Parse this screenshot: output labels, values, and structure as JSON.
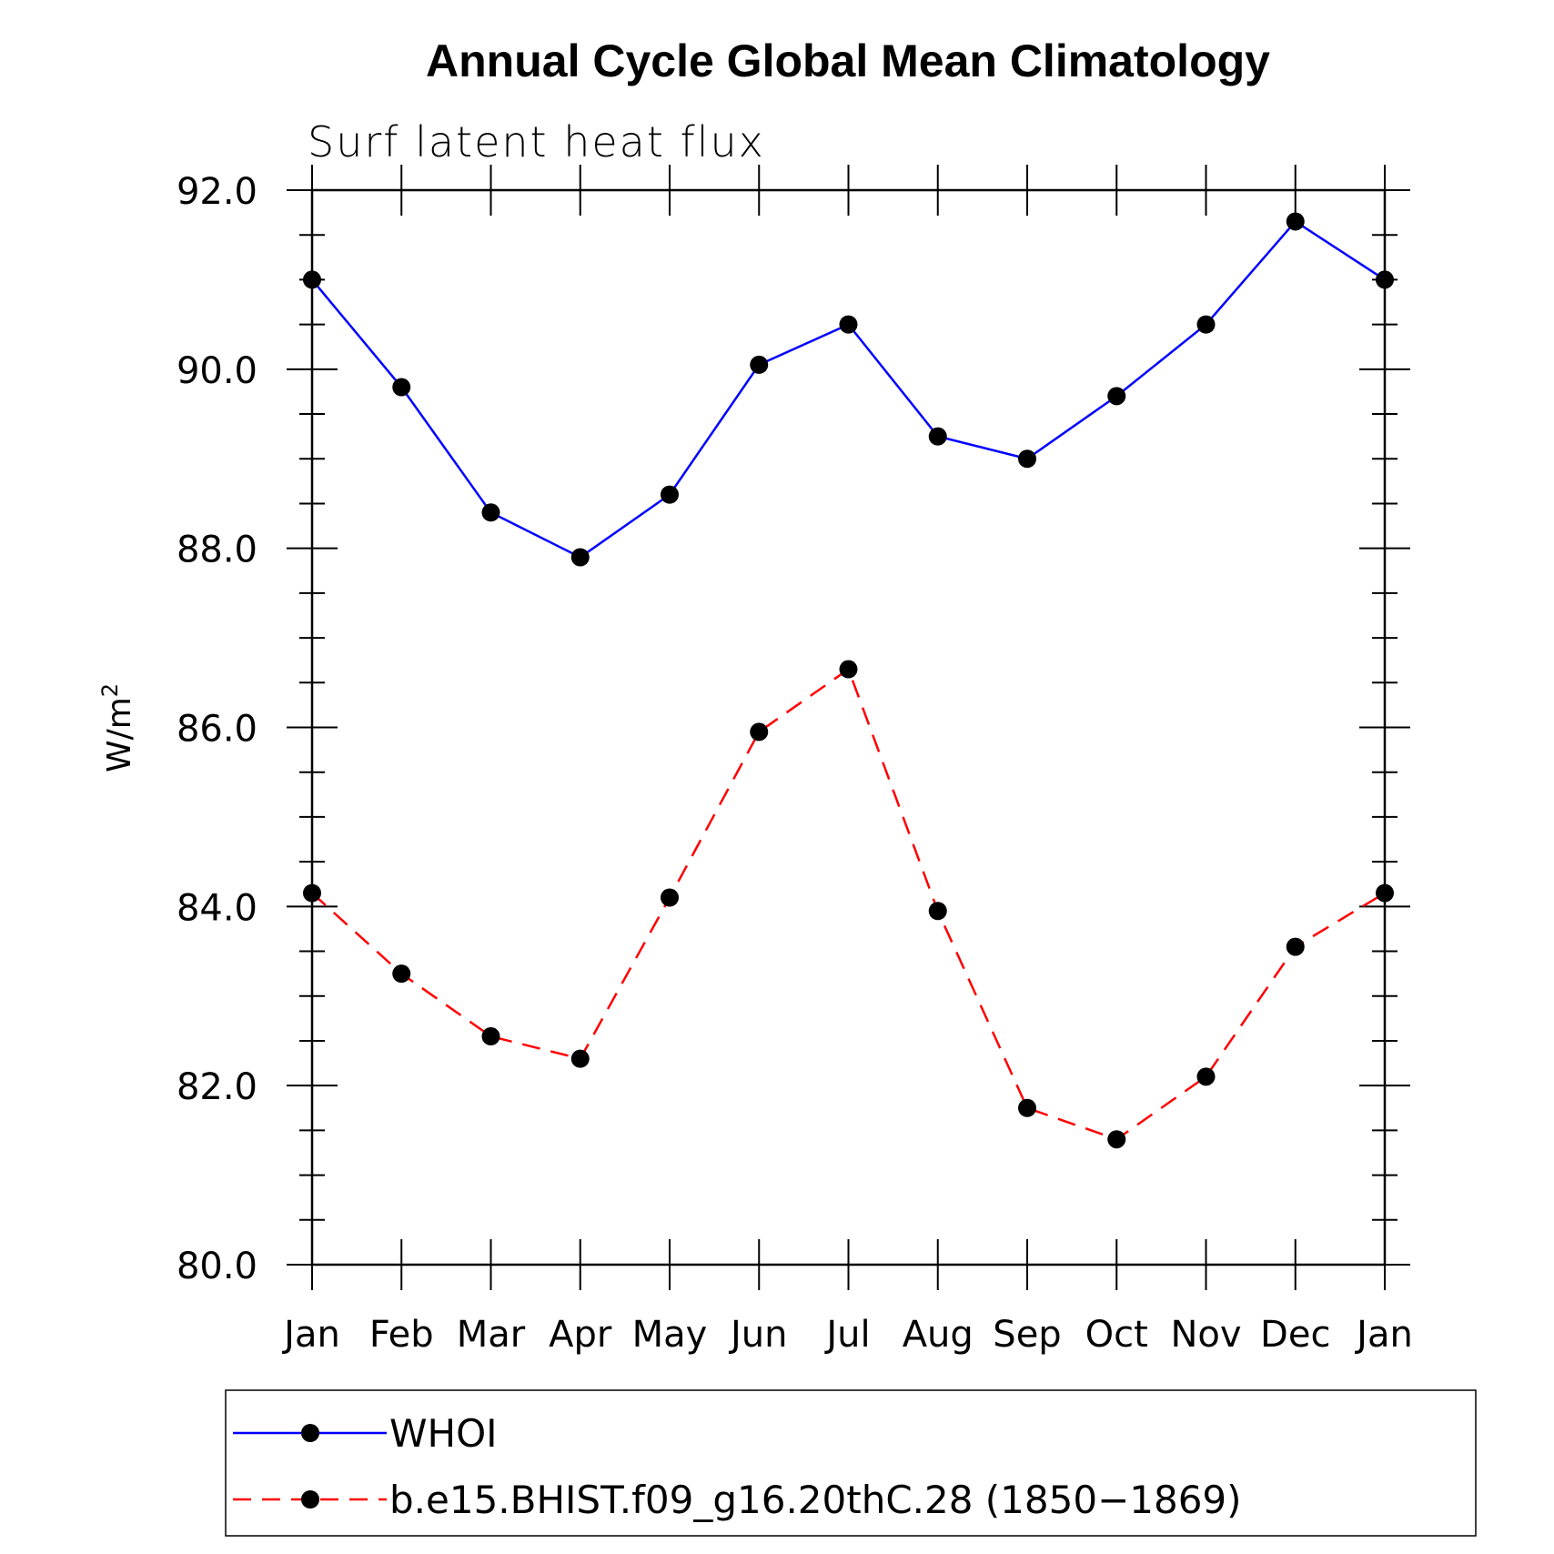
{
  "chart_data": {
    "type": "line",
    "title": "Annual Cycle Global Mean Climatology",
    "subtitle": "Surf latent heat flux",
    "xlabel": "",
    "ylabel": "W/m",
    "ylabel_superscript": "2",
    "categories": [
      "Jan",
      "Feb",
      "Mar",
      "Apr",
      "May",
      "Jun",
      "Jul",
      "Aug",
      "Sep",
      "Oct",
      "Nov",
      "Dec",
      "Jan"
    ],
    "ylim": [
      80,
      92
    ],
    "yticks": [
      "80.0",
      "82.0",
      "84.0",
      "86.0",
      "88.0",
      "90.0",
      "92.0"
    ],
    "ytick_values": [
      80,
      82,
      84,
      86,
      88,
      90,
      92
    ],
    "grid": false,
    "legend_position": "bottom",
    "series": [
      {
        "name": "WHOI",
        "color": "#0000ff",
        "line_style": "solid",
        "marker": "filled-circle",
        "values": [
          91.0,
          89.8,
          88.4,
          87.9,
          88.6,
          90.05,
          90.5,
          89.25,
          89.0,
          89.7,
          90.5,
          91.65,
          91.0
        ]
      },
      {
        "name": "b.e15.BHIST.f09_g16.20thC.28 (1850−1869)",
        "color": "#ff0000",
        "line_style": "dashed",
        "marker": "filled-circle",
        "values": [
          84.15,
          83.25,
          82.55,
          82.3,
          84.1,
          85.95,
          86.65,
          83.95,
          81.75,
          81.4,
          82.1,
          83.55,
          84.15
        ]
      }
    ]
  }
}
